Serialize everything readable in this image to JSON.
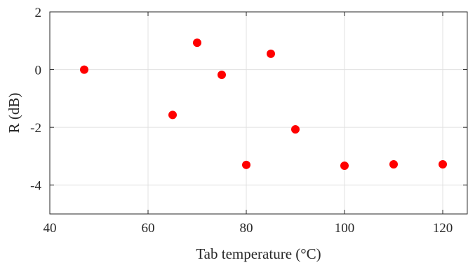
{
  "chart_data": {
    "type": "scatter",
    "title": "",
    "xlabel": "Tab temperature (°C)",
    "ylabel": "R (dB)",
    "xlim": [
      40,
      125
    ],
    "ylim": [
      -5,
      2
    ],
    "xticks": [
      40,
      60,
      80,
      100,
      120
    ],
    "yticks": [
      2,
      0,
      -2,
      -4
    ],
    "xtick_labels": [
      "40",
      "60",
      "80",
      "100",
      "120"
    ],
    "ytick_labels": [
      "2",
      "0",
      "-2",
      "-4"
    ],
    "grid": true,
    "legend": "none",
    "marker_color": "#ff0000",
    "series": [
      {
        "x": [
          47,
          65,
          70,
          75,
          80,
          85,
          90,
          100,
          110,
          120
        ],
        "y": [
          0.0,
          -1.57,
          0.93,
          -0.18,
          -3.3,
          0.55,
          -2.07,
          -3.33,
          -3.28,
          -3.28
        ]
      }
    ]
  }
}
